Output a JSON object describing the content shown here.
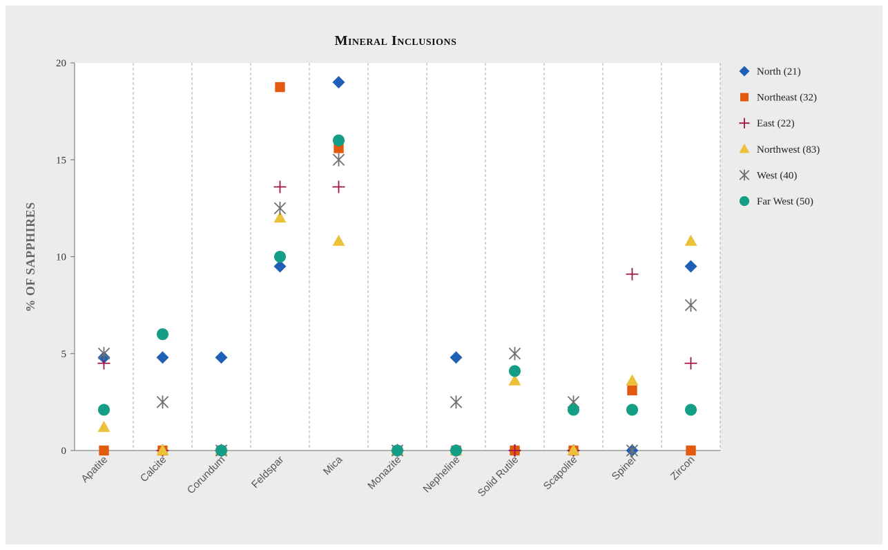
{
  "chart_data": {
    "type": "scatter",
    "title": "Mineral Inclusions",
    "xlabel": "",
    "ylabel": "% OF SAPPHIRES",
    "ylim": [
      0,
      20
    ],
    "yticks": [
      0,
      5,
      10,
      15,
      20
    ],
    "grid": "vertical dashed separators between categories",
    "legend_position": "right",
    "categories": [
      "Apatite",
      "Calcite",
      "Corundum",
      "Feldspar",
      "Mica",
      "Monazite",
      "Nepheline",
      "Solid Rutile",
      "Scapolite",
      "Spinel",
      "Zircon"
    ],
    "series": [
      {
        "name": "North (21)",
        "marker": "diamond",
        "color": "#1f5fb5",
        "values": [
          4.8,
          4.8,
          4.8,
          9.5,
          19.0,
          0,
          4.8,
          0,
          0,
          0,
          9.5
        ]
      },
      {
        "name": "Northeast (32)",
        "marker": "square",
        "color": "#e35a0e",
        "values": [
          0,
          0,
          0,
          18.75,
          15.6,
          0,
          0,
          0,
          0,
          3.1,
          0
        ]
      },
      {
        "name": "East (22)",
        "marker": "plus",
        "color": "#a0144a",
        "values": [
          4.5,
          0,
          0,
          13.6,
          13.6,
          0,
          0,
          0,
          0,
          9.1,
          4.5
        ]
      },
      {
        "name": "Northwest (83)",
        "marker": "triangle",
        "color": "#ecc13a",
        "values": [
          1.2,
          0,
          0,
          12.0,
          10.8,
          0,
          0,
          3.6,
          0,
          3.6,
          10.8
        ]
      },
      {
        "name": "West (40)",
        "marker": "asterisk",
        "color": "#707070",
        "values": [
          5.0,
          2.5,
          0,
          12.5,
          15.0,
          0,
          2.5,
          5.0,
          2.5,
          0,
          7.5
        ]
      },
      {
        "name": "Far West (50)",
        "marker": "circle",
        "color": "#149e86",
        "values": [
          2.1,
          6.0,
          0,
          10.0,
          16.0,
          0,
          0,
          4.1,
          2.1,
          2.1,
          2.1
        ]
      }
    ]
  }
}
